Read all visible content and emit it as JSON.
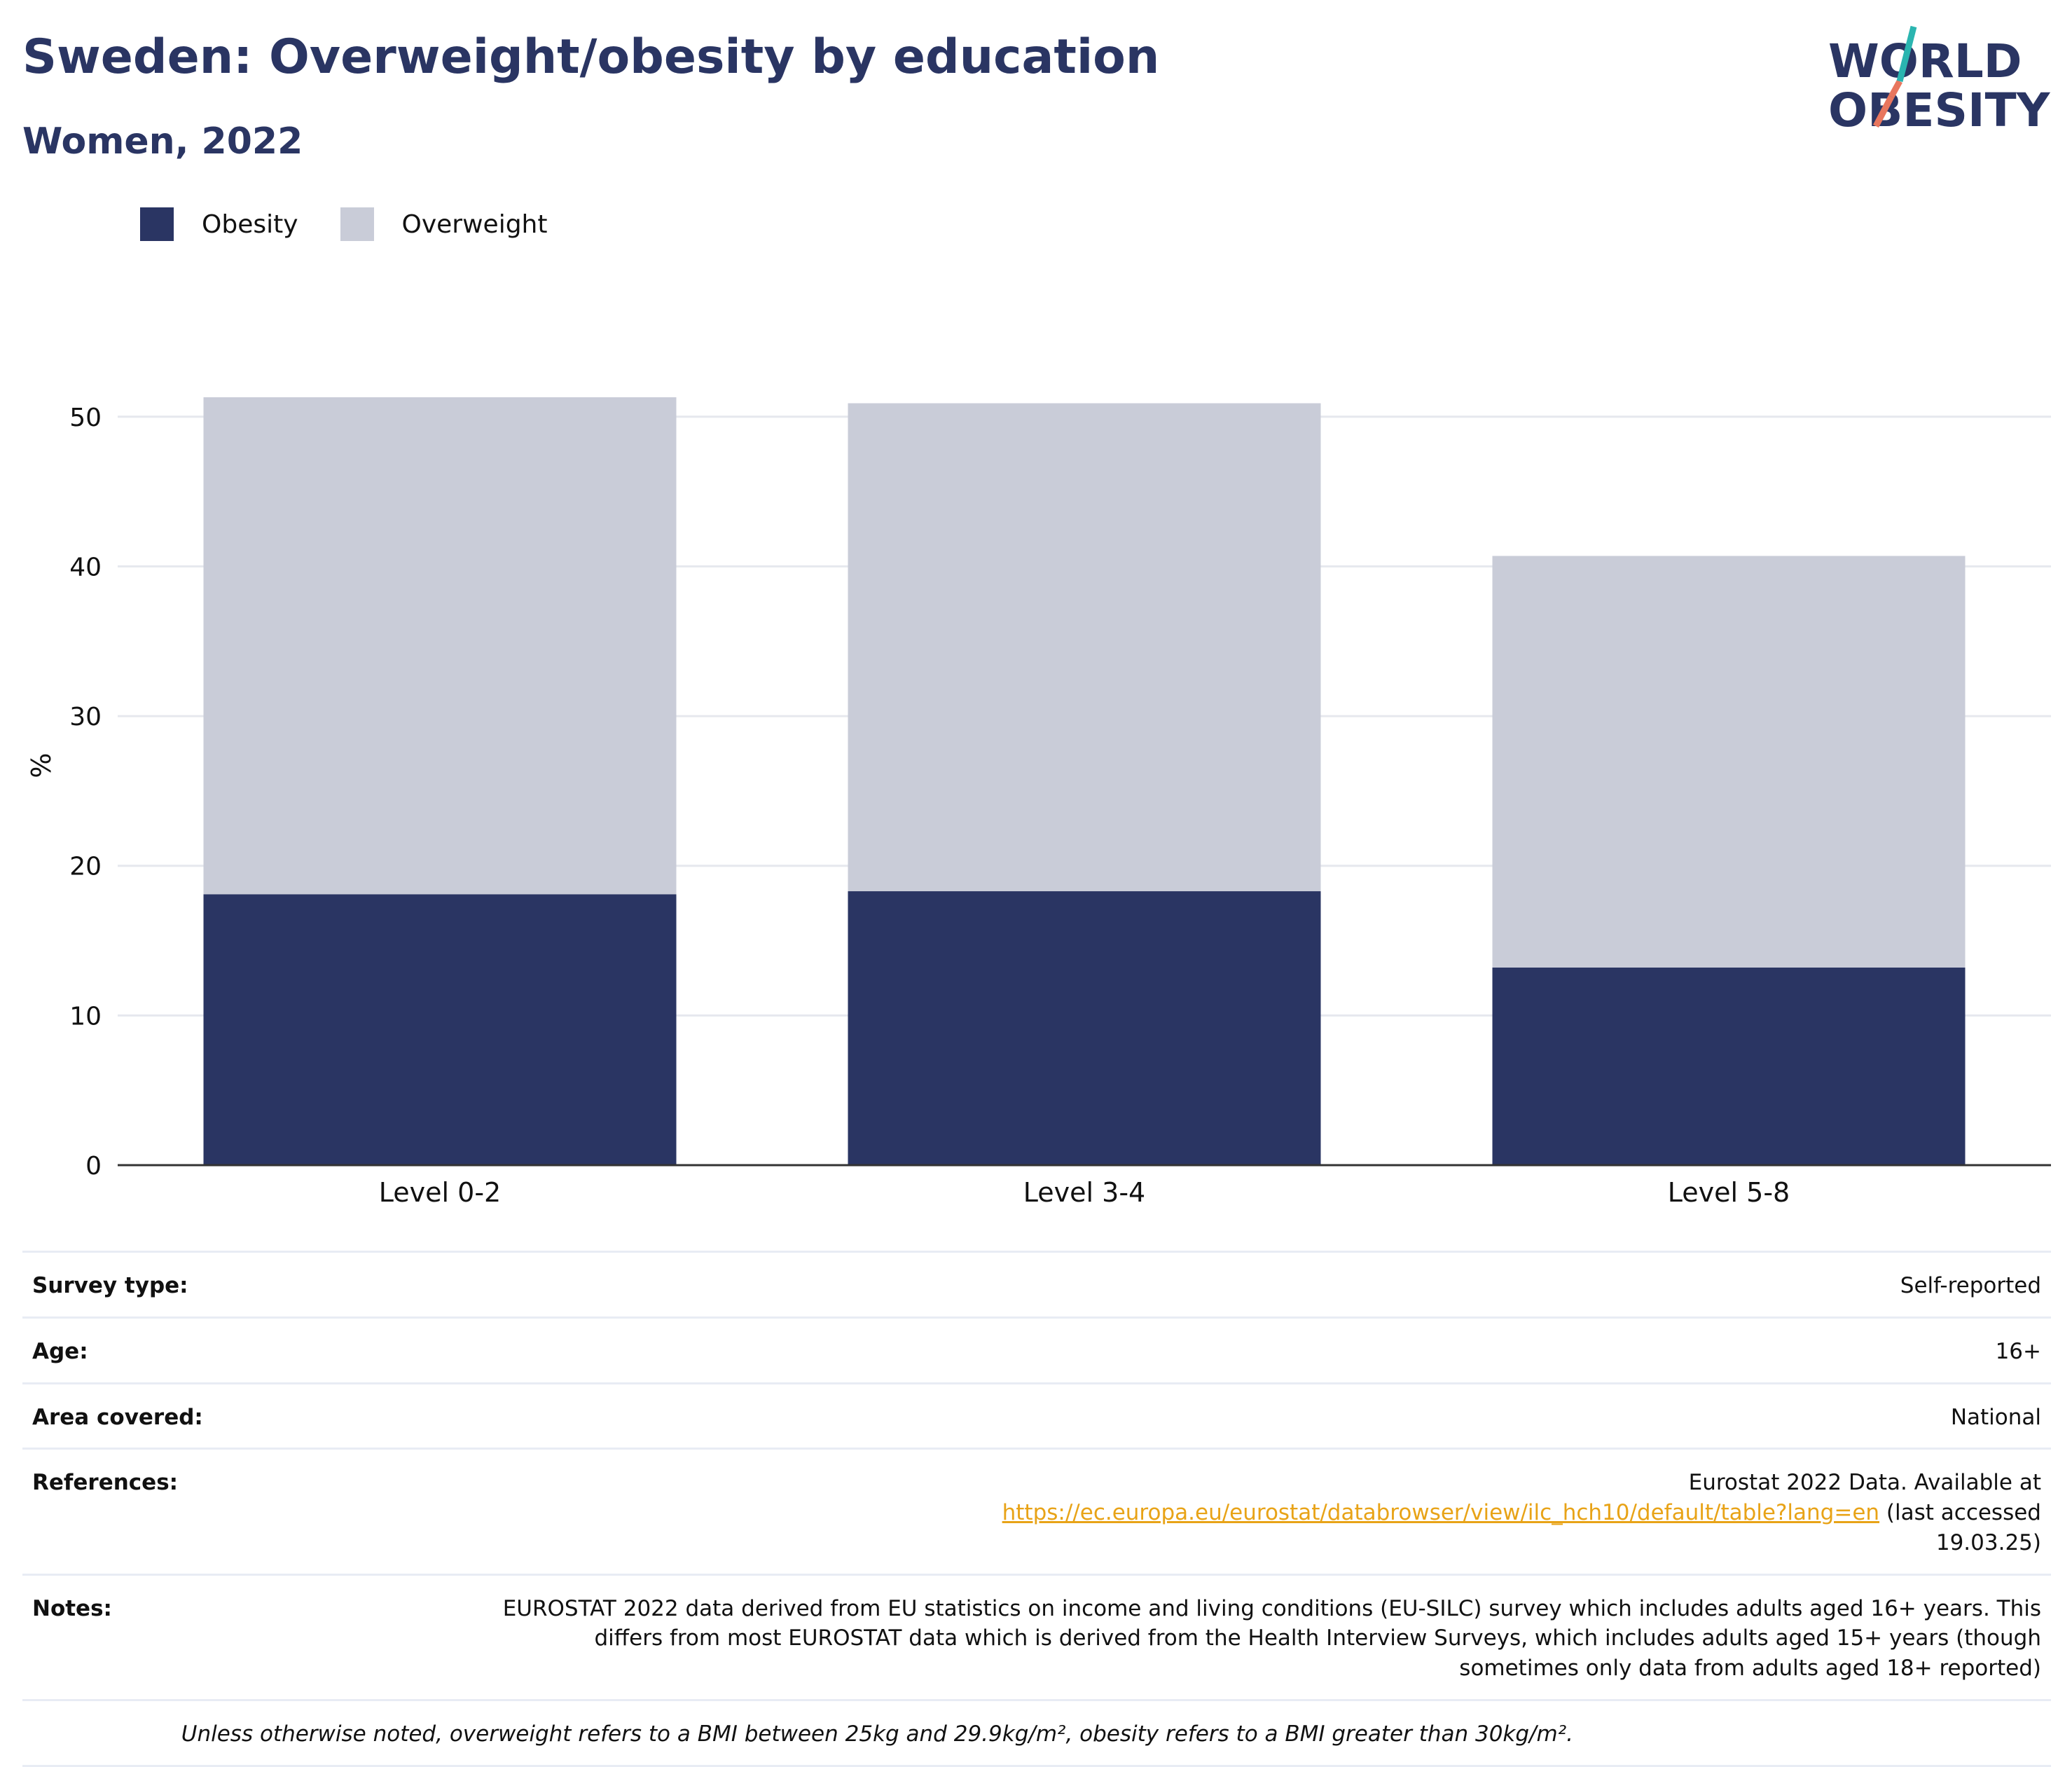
{
  "header": {
    "title": "Sweden: Overweight/obesity by education",
    "subtitle": "Women, 2022"
  },
  "logo": {
    "line1": "WORLD",
    "line2": "OBESITY",
    "color": "#2a3563",
    "accent_colors": [
      "#2bb5b0",
      "#e8765e"
    ]
  },
  "legend": [
    {
      "label": "Obesity",
      "color": "#2a3563"
    },
    {
      "label": "Overweight",
      "color": "#c9ccd8"
    }
  ],
  "chart_data": {
    "type": "bar",
    "stacked": true,
    "categories": [
      "Level 0-2",
      "Level 3-4",
      "Level 5-8"
    ],
    "series": [
      {
        "name": "Obesity",
        "values": [
          18.1,
          18.3,
          13.2
        ],
        "color": "#2a3563"
      },
      {
        "name": "Overweight",
        "values": [
          33.2,
          32.6,
          27.5
        ],
        "color": "#c9ccd8"
      }
    ],
    "title": "Sweden: Overweight/obesity by education",
    "subtitle": "Women, 2022",
    "xlabel": "",
    "ylabel": "%",
    "ylim": [
      0,
      53.5
    ],
    "yticks": [
      0,
      10,
      20,
      30,
      40,
      50
    ],
    "grid": true,
    "legend_position": "top-left"
  },
  "info": {
    "survey_type": {
      "label": "Survey type:",
      "value": "Self-reported"
    },
    "age": {
      "label": "Age:",
      "value": "16+"
    },
    "area": {
      "label": "Area covered:",
      "value": "National"
    },
    "references": {
      "label": "References:",
      "prefix": "Eurostat 2022 Data. Available at ",
      "link": "https://ec.europa.eu/eurostat/databrowser/view/ilc_hch10/default/table?lang=en",
      "suffix": " (last accessed 19.03.25)"
    },
    "notes": {
      "label": "Notes:",
      "value": "EUROSTAT 2022 data derived from EU statistics on income and living conditions (EU-SILC) survey which includes adults aged 16+ years. This differs from most EUROSTAT data which is derived from the Health Interview Surveys, which includes adults aged 15+ years (though sometimes only data from adults aged 18+ reported)"
    },
    "footnote": "Unless otherwise noted, overweight refers to a BMI between 25kg and 29.9kg/m², obesity refers to a BMI greater than 30kg/m²."
  }
}
